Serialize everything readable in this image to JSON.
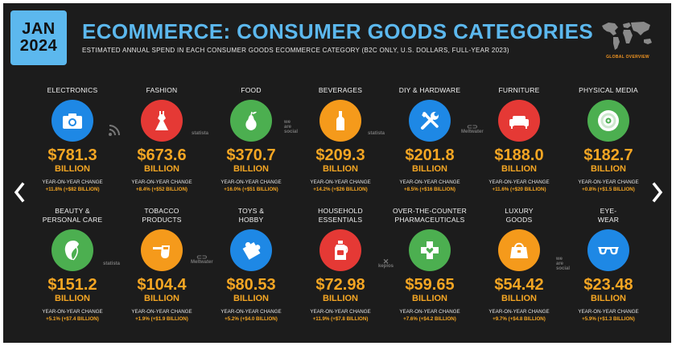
{
  "header": {
    "date_month": "JAN",
    "date_year": "2024",
    "title": "ECOMMERCE: CONSUMER GOODS CATEGORIES",
    "subtitle": "ESTIMATED ANNUAL SPEND IN EACH CONSUMER GOODS ECOMMERCE CATEGORY (B2C ONLY, U.S. DOLLARS, FULL-YEAR 2023)",
    "map_label": "GLOBAL OVERVIEW"
  },
  "watermarks": {
    "statista": "statista",
    "wearesocial_1": "we",
    "wearesocial_2": "are",
    "wearesocial_3": "social",
    "meltwater": "Meltwater",
    "kepios": "kepios"
  },
  "colors": {
    "blue": "#1e88e5",
    "red": "#e53935",
    "green": "#4caf50",
    "orange": "#f59a1b",
    "accent": "#f5a623",
    "title_blue": "#5cb8ee"
  },
  "categories": [
    {
      "label_1": "ELECTRONICS",
      "label_2": "",
      "icon": "camera-icon",
      "value": "$781.3",
      "unit": "BILLION",
      "yoy_label": "YEAR-ON-YEAR CHANGE",
      "yoy": "+11.8% (+$82 BILLION)"
    },
    {
      "label_1": "FASHION",
      "label_2": "",
      "icon": "dress-icon",
      "value": "$673.6",
      "unit": "BILLION",
      "yoy_label": "YEAR-ON-YEAR CHANGE",
      "yoy": "+8.4% (+$52 BILLION)"
    },
    {
      "label_1": "FOOD",
      "label_2": "",
      "icon": "pear-icon",
      "value": "$370.7",
      "unit": "BILLION",
      "yoy_label": "YEAR-ON-YEAR CHANGE",
      "yoy": "+16.0% (+$51 BILLION)"
    },
    {
      "label_1": "BEVERAGES",
      "label_2": "",
      "icon": "bottle-icon",
      "value": "$209.3",
      "unit": "BILLION",
      "yoy_label": "YEAR-ON-YEAR CHANGE",
      "yoy": "+14.2% (+$26 BILLION)"
    },
    {
      "label_1": "DIY & HARDWARE",
      "label_2": "",
      "icon": "tools-icon",
      "value": "$201.8",
      "unit": "BILLION",
      "yoy_label": "YEAR-ON-YEAR CHANGE",
      "yoy": "+8.5% (+$16 BILLION)"
    },
    {
      "label_1": "FURNITURE",
      "label_2": "",
      "icon": "sofa-icon",
      "value": "$188.0",
      "unit": "BILLION",
      "yoy_label": "YEAR-ON-YEAR CHANGE",
      "yoy": "+11.6% (+$20 BILLION)"
    },
    {
      "label_1": "PHYSICAL MEDIA",
      "label_2": "",
      "icon": "disc-icon",
      "value": "$182.7",
      "unit": "BILLION",
      "yoy_label": "YEAR-ON-YEAR CHANGE",
      "yoy": "+0.8% (+$1.5 BILLION)"
    },
    {
      "label_1": "BEAUTY &",
      "label_2": "PERSONAL CARE",
      "icon": "face-icon",
      "value": "$151.2",
      "unit": "BILLION",
      "yoy_label": "YEAR-ON-YEAR CHANGE",
      "yoy": "+5.1% (+$7.4 BILLION)"
    },
    {
      "label_1": "TOBACCO",
      "label_2": "PRODUCTS",
      "icon": "pipe-icon",
      "value": "$104.4",
      "unit": "BILLION",
      "yoy_label": "YEAR-ON-YEAR CHANGE",
      "yoy": "+1.9% (+$1.9 BILLION)"
    },
    {
      "label_1": "TOYS &",
      "label_2": "HOBBY",
      "icon": "puzzle-icon",
      "value": "$80.53",
      "unit": "BILLION",
      "yoy_label": "YEAR-ON-YEAR CHANGE",
      "yoy": "+5.2% (+$4.0 BILLION)"
    },
    {
      "label_1": "HOUSEHOLD",
      "label_2": "ESSENTIALS",
      "icon": "detergent-icon",
      "value": "$72.98",
      "unit": "BILLION",
      "yoy_label": "YEAR-ON-YEAR CHANGE",
      "yoy": "+11.9% (+$7.8 BILLION)"
    },
    {
      "label_1": "OVER-THE-COUNTER",
      "label_2": "PHARMACEUTICALS",
      "icon": "medical-cross-icon",
      "value": "$59.65",
      "unit": "BILLION",
      "yoy_label": "YEAR-ON-YEAR CHANGE",
      "yoy": "+7.6% (+$4.2 BILLION)"
    },
    {
      "label_1": "LUXURY",
      "label_2": "GOODS",
      "icon": "handbag-icon",
      "value": "$54.42",
      "unit": "BILLION",
      "yoy_label": "YEAR-ON-YEAR CHANGE",
      "yoy": "+9.7% (+$4.8 BILLION)"
    },
    {
      "label_1": "EYE-",
      "label_2": "WEAR",
      "icon": "glasses-icon",
      "value": "$23.48",
      "unit": "BILLION",
      "yoy_label": "YEAR-ON-YEAR CHANGE",
      "yoy": "+5.9% (+$1.3 BILLION)"
    }
  ],
  "navigation": {
    "prev_icon": "chevron-left-icon",
    "next_icon": "chevron-right-icon"
  }
}
